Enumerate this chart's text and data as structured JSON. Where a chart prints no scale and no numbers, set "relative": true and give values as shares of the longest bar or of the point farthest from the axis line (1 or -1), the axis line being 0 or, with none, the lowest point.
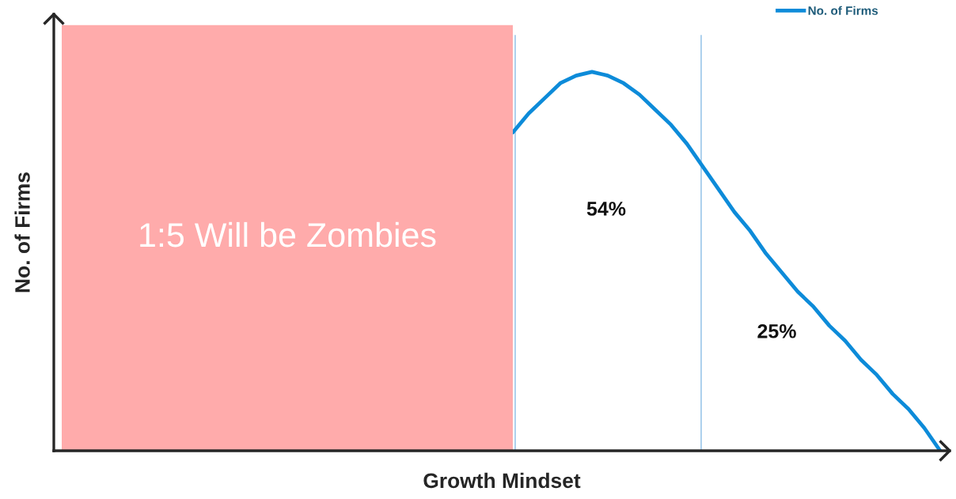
{
  "chart_data": {
    "type": "line",
    "relative": true,
    "xlabel": "Growth Mindset",
    "ylabel": "No. of Firms",
    "categories": [
      null,
      null,
      null,
      null,
      null,
      null,
      null,
      null,
      null,
      null,
      null,
      null,
      null,
      null,
      null,
      null,
      null,
      null,
      null,
      null,
      null,
      null,
      null,
      null,
      null,
      null,
      null,
      null,
      null,
      null,
      null,
      null,
      null,
      null,
      null,
      null,
      null,
      null,
      null,
      null,
      null,
      null,
      null,
      null,
      null,
      null,
      null,
      null,
      null,
      null,
      null,
      null,
      null,
      null,
      null,
      null,
      null
    ],
    "series": [
      {
        "name": "No. of Firms",
        "color": "#0d8bd9",
        "values": [
          null,
          null,
          null,
          null,
          null,
          null,
          null,
          null,
          null,
          null,
          null,
          null,
          null,
          null,
          null,
          null,
          null,
          null,
          null,
          null,
          null,
          null,
          null,
          null,
          null,
          null,
          null,
          null,
          null,
          0.84,
          0.89,
          0.93,
          0.97,
          0.99,
          1.0,
          0.99,
          0.97,
          0.94,
          0.9,
          0.86,
          0.81,
          0.75,
          0.69,
          0.63,
          0.58,
          0.52,
          0.47,
          0.42,
          0.38,
          0.33,
          0.29,
          0.24,
          0.2,
          0.15,
          0.11,
          0.06,
          0
        ]
      }
    ],
    "annotations": [
      "1:5 Will be Zombies",
      "54%",
      "25%"
    ],
    "legend": "top right",
    "tick_labels": false,
    "marker": "none",
    "line_style": "solid"
  }
}
